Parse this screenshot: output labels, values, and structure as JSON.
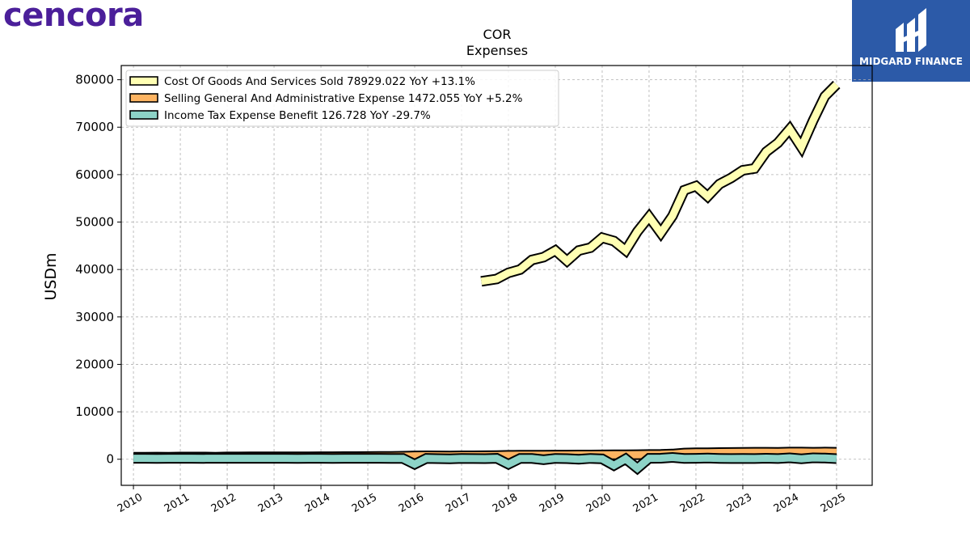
{
  "brand": {
    "left_logo_text": "cencora",
    "right_logo_text": "MIDGARD FINANCE"
  },
  "chart_data": {
    "type": "area",
    "title": "COR",
    "subtitle": "Expenses",
    "ylabel": "USDm",
    "xlabel": "",
    "xlim": [
      2009.74,
      2025.76
    ],
    "ylim": [
      -5500,
      83000
    ],
    "yticks": [
      0,
      10000,
      20000,
      30000,
      40000,
      50000,
      60000,
      70000,
      80000
    ],
    "xtick_labels": [
      "2010",
      "2011",
      "2012",
      "2013",
      "2014",
      "2015",
      "2016",
      "2017",
      "2018",
      "2019",
      "2020",
      "2021",
      "2022",
      "2023",
      "2024",
      "2025"
    ],
    "grid": true,
    "legend_position": "top-left",
    "series": [
      {
        "name": "Cost Of Goods And Services Sold",
        "legend_label": "Cost Of Goods And Services Sold  78929.022 YoY +13.1%",
        "color": "#ffffb3",
        "x": [
          2017.42,
          2017.75,
          2018.0,
          2018.25,
          2018.5,
          2018.75,
          2019.0,
          2019.25,
          2019.5,
          2019.75,
          2020.0,
          2020.25,
          2020.5,
          2020.75,
          2021.0,
          2021.25,
          2021.5,
          2021.75,
          2022.0,
          2022.25,
          2022.5,
          2022.75,
          2023.0,
          2023.25,
          2023.5,
          2023.75,
          2024.0,
          2024.25,
          2024.5,
          2024.75,
          2025.0
        ],
        "values": [
          37500,
          38000,
          39300,
          40000,
          42000,
          42600,
          44000,
          41800,
          44000,
          44600,
          46700,
          46000,
          44000,
          48000,
          51100,
          47700,
          51300,
          56700,
          57600,
          55400,
          58000,
          59300,
          60900,
          61300,
          64800,
          66700,
          69600,
          65800,
          71400,
          76500,
          79000
        ]
      },
      {
        "name": "Selling General And Administrative Expense",
        "legend_label": "Selling General And Administrative Expense  1472.055 YoY +5.2%",
        "color": "#fdb462",
        "x": [
          2010.0,
          2010.25,
          2010.5,
          2010.75,
          2011.0,
          2011.25,
          2011.5,
          2011.75,
          2012.0,
          2012.25,
          2012.5,
          2012.75,
          2013.0,
          2013.25,
          2013.5,
          2013.75,
          2014.0,
          2014.25,
          2014.5,
          2014.75,
          2015.0,
          2015.25,
          2015.5,
          2015.75,
          2016.0,
          2016.25,
          2016.5,
          2016.75,
          2017.0,
          2017.25,
          2017.5,
          2017.75,
          2018.0,
          2018.25,
          2018.5,
          2018.75,
          2019.0,
          2019.25,
          2019.5,
          2019.75,
          2020.0,
          2020.25,
          2020.5,
          2020.75,
          2021.0,
          2021.25,
          2021.5,
          2021.75,
          2022.0,
          2022.25,
          2022.5,
          2022.75,
          2023.0,
          2023.25,
          2023.5,
          2023.75,
          2024.0,
          2024.25,
          2024.5,
          2024.75,
          2025.0
        ],
        "values": [
          430,
          440,
          450,
          430,
          460,
          460,
          470,
          440,
          480,
          490,
          500,
          500,
          510,
          520,
          500,
          510,
          530,
          540,
          560,
          560,
          570,
          580,
          600,
          640,
          700,
          720,
          700,
          690,
          720,
          730,
          740,
          760,
          820,
          840,
          840,
          850,
          870,
          880,
          890,
          900,
          920,
          930,
          950,
          960,
          1000,
          1020,
          1100,
          1300,
          1350,
          1370,
          1400,
          1420,
          1450,
          1480,
          1470,
          1460,
          1500,
          1500,
          1480,
          1500,
          1472
        ]
      },
      {
        "name": "Income Tax Expense Benefit",
        "legend_label": "Income Tax Expense Benefit  126.728 YoY -29.7%",
        "color": "#8dd3c7",
        "x": [
          2010.0,
          2010.25,
          2010.5,
          2010.75,
          2011.0,
          2011.25,
          2011.5,
          2011.75,
          2012.0,
          2012.25,
          2012.5,
          2012.75,
          2013.0,
          2013.25,
          2013.5,
          2013.75,
          2014.0,
          2014.25,
          2014.5,
          2014.75,
          2015.0,
          2015.25,
          2015.5,
          2015.75,
          2016.0,
          2016.25,
          2016.5,
          2016.75,
          2017.0,
          2017.25,
          2017.5,
          2017.75,
          2018.0,
          2018.25,
          2018.5,
          2018.75,
          2019.0,
          2019.25,
          2019.5,
          2019.75,
          2020.0,
          2020.25,
          2020.5,
          2020.75,
          2021.0,
          2021.25,
          2021.5,
          2021.75,
          2022.0,
          2022.25,
          2022.5,
          2022.75,
          2023.0,
          2023.25,
          2023.5,
          2023.75,
          2024.0,
          2024.25,
          2024.5,
          2024.75,
          2025.0
        ],
        "values": [
          200,
          190,
          180,
          190,
          200,
          190,
          180,
          190,
          200,
          200,
          190,
          200,
          200,
          190,
          180,
          190,
          200,
          180,
          190,
          200,
          200,
          190,
          180,
          160,
          -1050,
          170,
          120,
          80,
          180,
          150,
          120,
          200,
          -1050,
          180,
          160,
          -100,
          180,
          120,
          0,
          170,
          80,
          -1300,
          100,
          -1900,
          200,
          210,
          390,
          180,
          200,
          240,
          170,
          140,
          170,
          140,
          210,
          150,
          300,
          100,
          300,
          240,
          127
        ]
      }
    ]
  }
}
